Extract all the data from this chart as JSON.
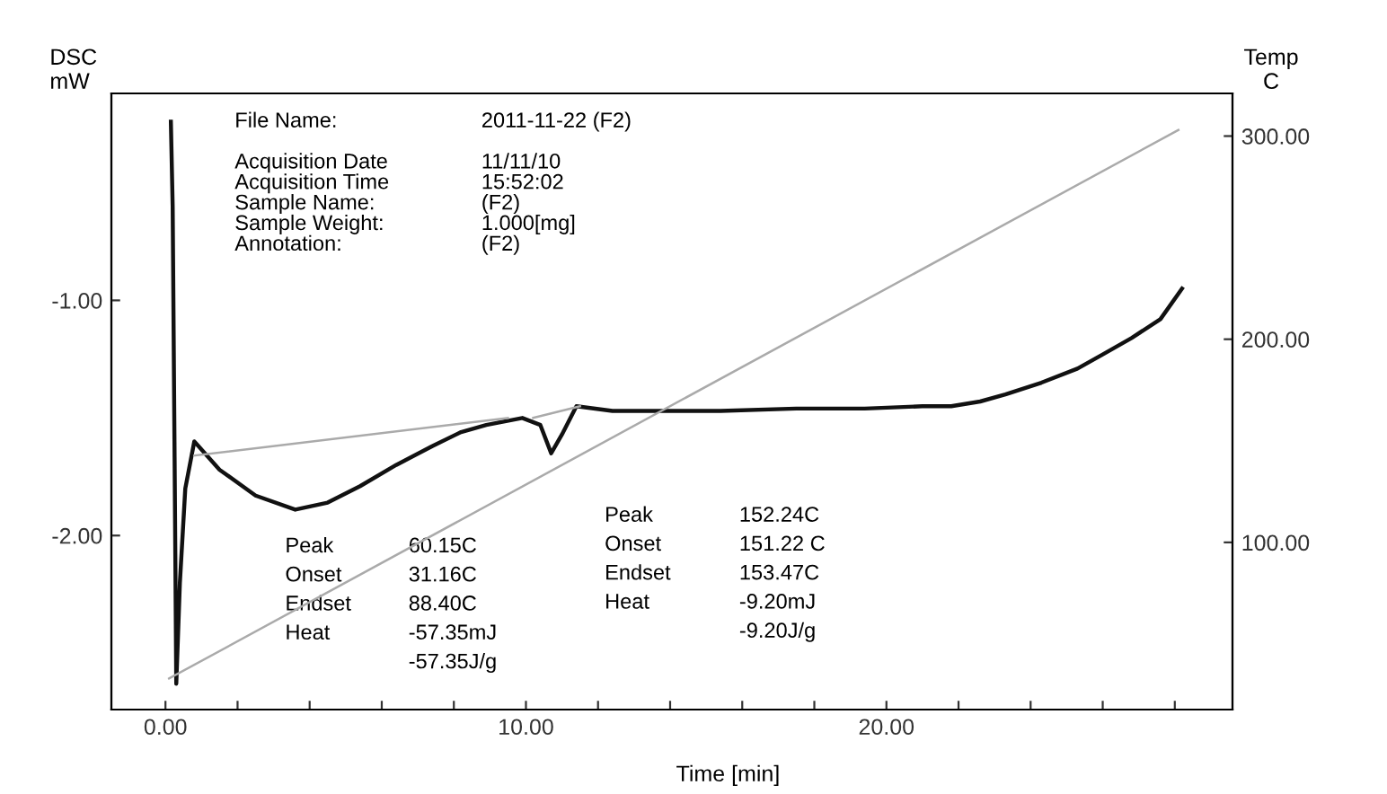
{
  "chart_data": {
    "type": "line",
    "xlabel": "Time [min]",
    "ylabel": "DSC\nmW",
    "y2label": "Temp\nC",
    "xlim": [
      -1.5,
      29.6
    ],
    "ylim": [
      -2.74,
      -0.12
    ],
    "y2lim": [
      17.7,
      321
    ],
    "xticks": [
      {
        "value": 0,
        "label": "0.00"
      },
      {
        "value": 2,
        "label": null
      },
      {
        "value": 4,
        "label": null
      },
      {
        "value": 6,
        "label": null
      },
      {
        "value": 8,
        "label": null
      },
      {
        "value": 10,
        "label": "10.00"
      },
      {
        "value": 12,
        "label": null
      },
      {
        "value": 14,
        "label": null
      },
      {
        "value": 16,
        "label": null
      },
      {
        "value": 18,
        "label": null
      },
      {
        "value": 20,
        "label": "20.00"
      },
      {
        "value": 22,
        "label": null
      },
      {
        "value": 24,
        "label": null
      },
      {
        "value": 26,
        "label": null
      },
      {
        "value": 28,
        "label": null
      }
    ],
    "yticks": [
      {
        "value": -1,
        "label": "-1.00"
      },
      {
        "value": -2,
        "label": "-2.00"
      }
    ],
    "y2ticks": [
      {
        "value": 100,
        "label": "100.00"
      },
      {
        "value": 200,
        "label": "200.00"
      },
      {
        "value": 300,
        "label": "300.00"
      }
    ],
    "grid": false,
    "legend": false,
    "series": [
      {
        "color": "#111111",
        "x": [
          0.15,
          0.2,
          0.25,
          0.3,
          0.4,
          0.55,
          0.8,
          1.5,
          2.5,
          3.6,
          4.5,
          5.4,
          6.4,
          7.4,
          8.2,
          8.9,
          9.9,
          10.4,
          10.7,
          11.0,
          11.4,
          12.4,
          14.0,
          15.4,
          17.5,
          19.4,
          21.0,
          21.8,
          22.6,
          23.3,
          24.3,
          25.3,
          26.0,
          26.8,
          27.6,
          28.2
        ],
        "values": [
          -0.24,
          -0.6,
          -1.6,
          -2.63,
          -2.2,
          -1.8,
          -1.6,
          -1.72,
          -1.83,
          -1.89,
          -1.86,
          -1.79,
          -1.7,
          -1.62,
          -1.56,
          -1.53,
          -1.5,
          -1.53,
          -1.65,
          -1.57,
          -1.45,
          -1.47,
          -1.47,
          -1.47,
          -1.46,
          -1.46,
          -1.45,
          -1.45,
          -1.43,
          -1.4,
          -1.35,
          -1.29,
          -1.23,
          -1.16,
          -1.08,
          -0.95
        ]
      },
      {
        "color": "#aaaaaa",
        "x": [
          0.8,
          9.5
        ],
        "values": [
          -1.66,
          -1.5
        ]
      },
      {
        "color": "#aaaaaa",
        "x": [
          10.2,
          11.5
        ],
        "values": [
          -1.5,
          -1.45
        ]
      },
      {
        "color": "#aaaaaa",
        "axis": "y2",
        "x": [
          0.1,
          28.1
        ],
        "values": [
          33,
          303
        ]
      }
    ],
    "annotations": [
      "File Name:\n\nAcquisition Date\nAcquisition Time\nSample Name:\nSample Weight:\nAnnotation:",
      "2011-11-22 (F2)\n\n11/11/10\n15:52:02\n(F2)\n1.000[mg]\n(F2)",
      "Peak\nOnset\nEndset\nHeat",
      "60.15C\n31.16C\n88.40C\n-57.35mJ\n-57.35J/g",
      "Peak\nOnset\nEndset\nHeat",
      "152.24C\n151.22 C\n153.47C\n-9.20mJ\n-9.20J/g"
    ]
  }
}
